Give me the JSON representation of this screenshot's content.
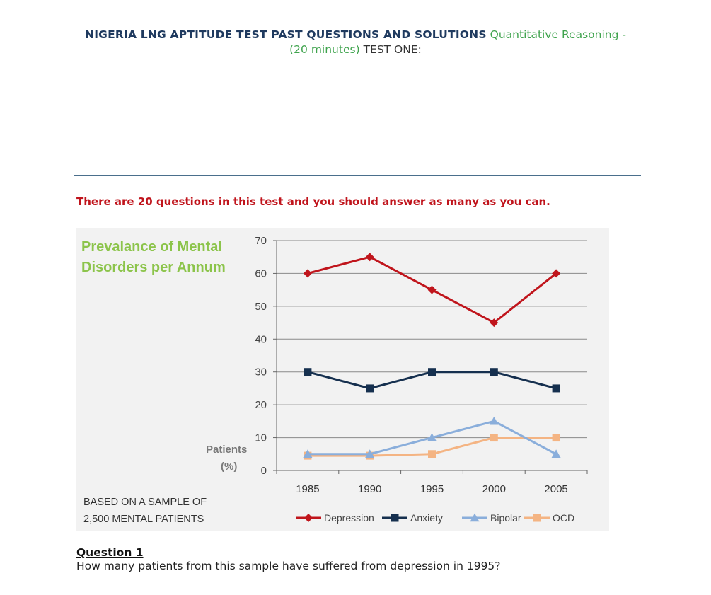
{
  "header": {
    "bold_title": "NIGERIA LNG APTITUDE TEST  PAST QUESTIONS AND SOLUTIONS",
    "green_part1": "Quantitative Reasoning -",
    "green_part2": "(20 minutes)",
    "dark_part": "TEST ONE:"
  },
  "intro_text": "There are 20 questions in this test and you should answer as many as you can.",
  "chart_data": {
    "type": "line",
    "title_line1": "Prevalance of Mental",
    "title_line2": "Disorders per Annum",
    "ylabel_line1": "Patients",
    "ylabel_line2": "(%)",
    "note_line1": "BASED ON A SAMPLE OF",
    "note_line2": "2,500 MENTAL PATIENTS",
    "x": [
      "1985",
      "1990",
      "1995",
      "2000",
      "2005"
    ],
    "ylim": [
      0,
      70
    ],
    "yticks": [
      0,
      10,
      20,
      30,
      40,
      50,
      60,
      70
    ],
    "grid": true,
    "legend_position": "bottom",
    "series": [
      {
        "name": "Depression",
        "values": [
          60,
          65,
          55,
          45,
          60
        ],
        "color": "#c0151c",
        "marker": "diamond"
      },
      {
        "name": "Anxiety",
        "values": [
          30,
          25,
          30,
          30,
          25
        ],
        "color": "#16304f",
        "marker": "square"
      },
      {
        "name": "Bipolar",
        "values": [
          5,
          5,
          10,
          15,
          5
        ],
        "color": "#8aaedb",
        "marker": "triangle"
      },
      {
        "name": "OCD",
        "values": [
          4.5,
          4.5,
          5,
          10,
          10
        ],
        "color": "#f4b483",
        "marker": "square"
      }
    ],
    "background": "#f2f2f2",
    "title_color": "#8cc44b"
  },
  "question": {
    "title": "Question 1",
    "text": "How many patients from this sample have suffered from depression in 1995?"
  }
}
